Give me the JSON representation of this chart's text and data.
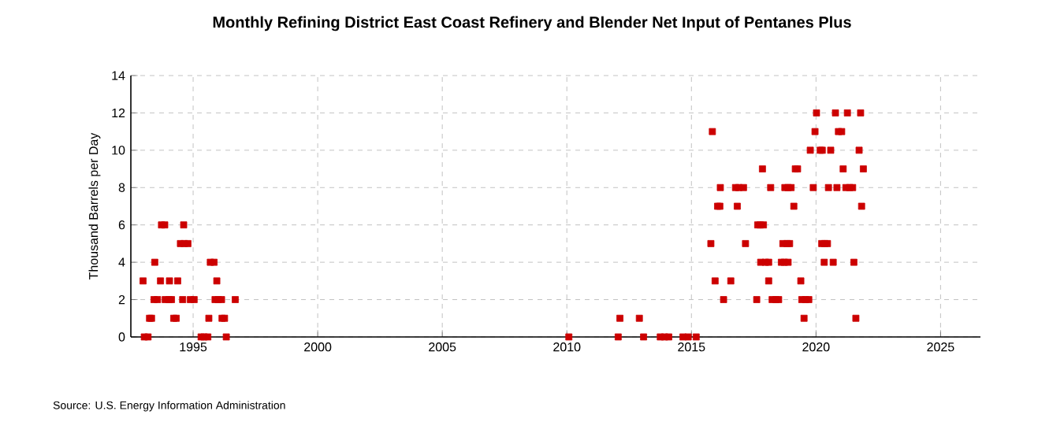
{
  "chart_data": {
    "type": "scatter",
    "title": "Monthly Refining District East Coast Refinery and Blender Net Input of Pentanes Plus",
    "ylabel": "Thousand Barrels per Day",
    "annotations": [
      "Source: U.S. Energy Information Administration"
    ],
    "x": [
      1992.99,
      1993.04,
      1993.19,
      1993.25,
      1993.33,
      1993.46,
      1993.43,
      1993.57,
      1993.69,
      1993.73,
      1993.86,
      1993.88,
      1994.03,
      1994.05,
      1994.13,
      1994.22,
      1994.32,
      1994.38,
      1994.49,
      1994.64,
      1994.79,
      1994.62,
      1994.58,
      1994.89,
      1995.04,
      1995.32,
      1995.44,
      1995.59,
      1995.63,
      1995.69,
      1995.84,
      1995.95,
      1995.88,
      1996.01,
      1996.14,
      1996.16,
      1996.26,
      1996.33,
      1996.69,
      2010.08,
      2012.06,
      2012.13,
      2012.91,
      2013.08,
      2013.75,
      2013.92,
      2014.09,
      2014.66,
      2014.87,
      2015.19,
      2015.84,
      2015.78,
      2015.95,
      2016.05,
      2016.14,
      2016.16,
      2016.29,
      2016.58,
      2016.77,
      2016.9,
      2017.09,
      2016.84,
      2017.17,
      2017.62,
      2017.66,
      2017.76,
      2017.89,
      2017.85,
      2017.78,
      2017.97,
      2018.1,
      2018.1,
      2018.18,
      2018.24,
      2018.39,
      2018.5,
      2018.67,
      2018.84,
      2018.94,
      2018.61,
      2018.73,
      2018.88,
      2018.75,
      2018.88,
      2019.0,
      2019.11,
      2019.17,
      2019.26,
      2019.39,
      2019.43,
      2019.58,
      2019.71,
      2019.52,
      2019.77,
      2019.89,
      2019.96,
      2020.02,
      2020.17,
      2020.25,
      2020.23,
      2020.35,
      2020.46,
      2020.33,
      2020.5,
      2020.59,
      2020.69,
      2020.78,
      2020.84,
      2020.9,
      2021.03,
      2021.09,
      2021.2,
      2021.35,
      2021.47,
      2021.26,
      2021.52,
      2021.6,
      2021.73,
      2021.79,
      2021.83,
      2021.9
    ],
    "values": [
      3,
      0,
      0,
      1,
      1,
      4,
      2,
      2,
      3,
      6,
      6,
      2,
      2,
      3,
      2,
      1,
      1,
      3,
      5,
      5,
      5,
      6,
      2,
      2,
      2,
      0,
      0,
      0,
      1,
      4,
      4,
      3,
      2,
      2,
      2,
      1,
      1,
      0,
      2,
      0,
      0,
      1,
      1,
      0,
      0,
      0,
      0,
      0,
      0,
      0,
      11,
      5,
      3,
      7,
      7,
      8,
      2,
      3,
      8,
      8,
      8,
      7,
      5,
      2,
      6,
      6,
      6,
      9,
      4,
      4,
      4,
      3,
      8,
      2,
      2,
      2,
      5,
      5,
      5,
      4,
      4,
      4,
      8,
      8,
      8,
      7,
      9,
      9,
      3,
      2,
      2,
      2,
      1,
      10,
      8,
      11,
      12,
      10,
      10,
      5,
      5,
      5,
      4,
      8,
      10,
      4,
      12,
      8,
      11,
      11,
      9,
      8,
      8,
      8,
      12,
      4,
      1,
      10,
      12,
      7,
      9
    ],
    "color": "#cc0000",
    "marker": "square",
    "xlim": [
      1992.5,
      2026.6
    ],
    "ylim": [
      0,
      14
    ],
    "xticks": [
      1995,
      2000,
      2005,
      2010,
      2015,
      2020,
      2025
    ],
    "yticks": [
      0,
      2,
      4,
      6,
      8,
      10,
      12,
      14
    ],
    "grid": true
  }
}
